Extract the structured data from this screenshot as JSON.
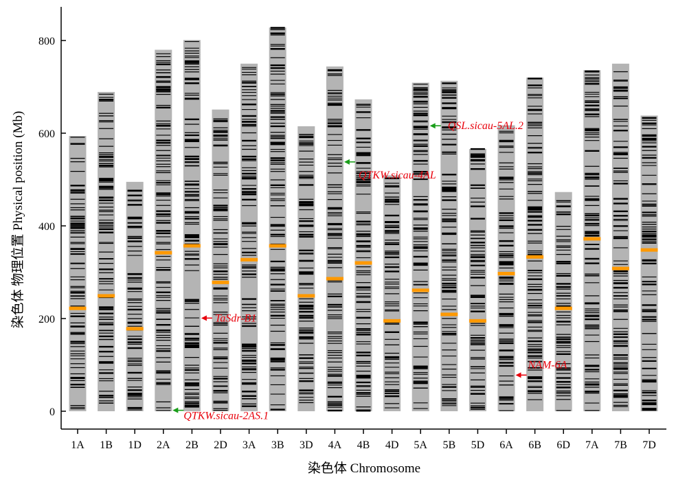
{
  "chart_data": {
    "type": "chromosome-marker-density",
    "xlabel": "染色体 Chromosome",
    "ylabel": "染色体 物理位置 Physical position (Mb)",
    "ylim": [
      0,
      840
    ],
    "yticks": [
      0,
      200,
      400,
      600,
      800
    ],
    "colors": {
      "chromosome": "#b4b4b4",
      "marker": "#000000",
      "centromere": "#ff9900",
      "annotation_text": "#e8000b",
      "qtl_arrow": "#1a9e1a",
      "gene_arrow": "#e8000b"
    },
    "chromosomes": [
      {
        "name": "1A",
        "length": 594,
        "centromere": 222
      },
      {
        "name": "1B",
        "length": 689,
        "centromere": 249
      },
      {
        "name": "1D",
        "length": 495,
        "centromere": 178
      },
      {
        "name": "2A",
        "length": 780,
        "centromere": 342
      },
      {
        "name": "2B",
        "length": 801,
        "centromere": 357
      },
      {
        "name": "2D",
        "length": 651,
        "centromere": 278
      },
      {
        "name": "3A",
        "length": 750,
        "centromere": 327
      },
      {
        "name": "3B",
        "length": 828,
        "centromere": 357
      },
      {
        "name": "3D",
        "length": 615,
        "centromere": 249
      },
      {
        "name": "4A",
        "length": 744,
        "centromere": 286
      },
      {
        "name": "4B",
        "length": 673,
        "centromere": 320
      },
      {
        "name": "4D",
        "length": 509,
        "centromere": 195
      },
      {
        "name": "5A",
        "length": 709,
        "centromere": 261
      },
      {
        "name": "5B",
        "length": 713,
        "centromere": 209
      },
      {
        "name": "5D",
        "length": 566,
        "centromere": 195
      },
      {
        "name": "6A",
        "length": 617,
        "centromere": 297
      },
      {
        "name": "6B",
        "length": 720,
        "centromere": 333
      },
      {
        "name": "6D",
        "length": 473,
        "centromere": 222
      },
      {
        "name": "7A",
        "length": 736,
        "centromere": 372
      },
      {
        "name": "7B",
        "length": 750,
        "centromere": 308
      },
      {
        "name": "7D",
        "length": 638,
        "centromere": 348
      }
    ],
    "annotations": [
      {
        "label": "QSL.sicau-5AL.2",
        "chromosome": "5A",
        "position": 616,
        "kind": "qtl"
      },
      {
        "label": "QTKW.sicau-4AL",
        "chromosome": "4A",
        "position": 538,
        "kind": "qtl"
      },
      {
        "label": "TaSdr-B1",
        "chromosome": "2B",
        "position": 201,
        "kind": "gene"
      },
      {
        "label": "NAM-6A",
        "chromosome": "6A",
        "position": 78,
        "kind": "gene"
      },
      {
        "label": "QTKW.sicau-2AS.1",
        "chromosome": "2A",
        "position": 2,
        "kind": "qtl"
      }
    ]
  }
}
